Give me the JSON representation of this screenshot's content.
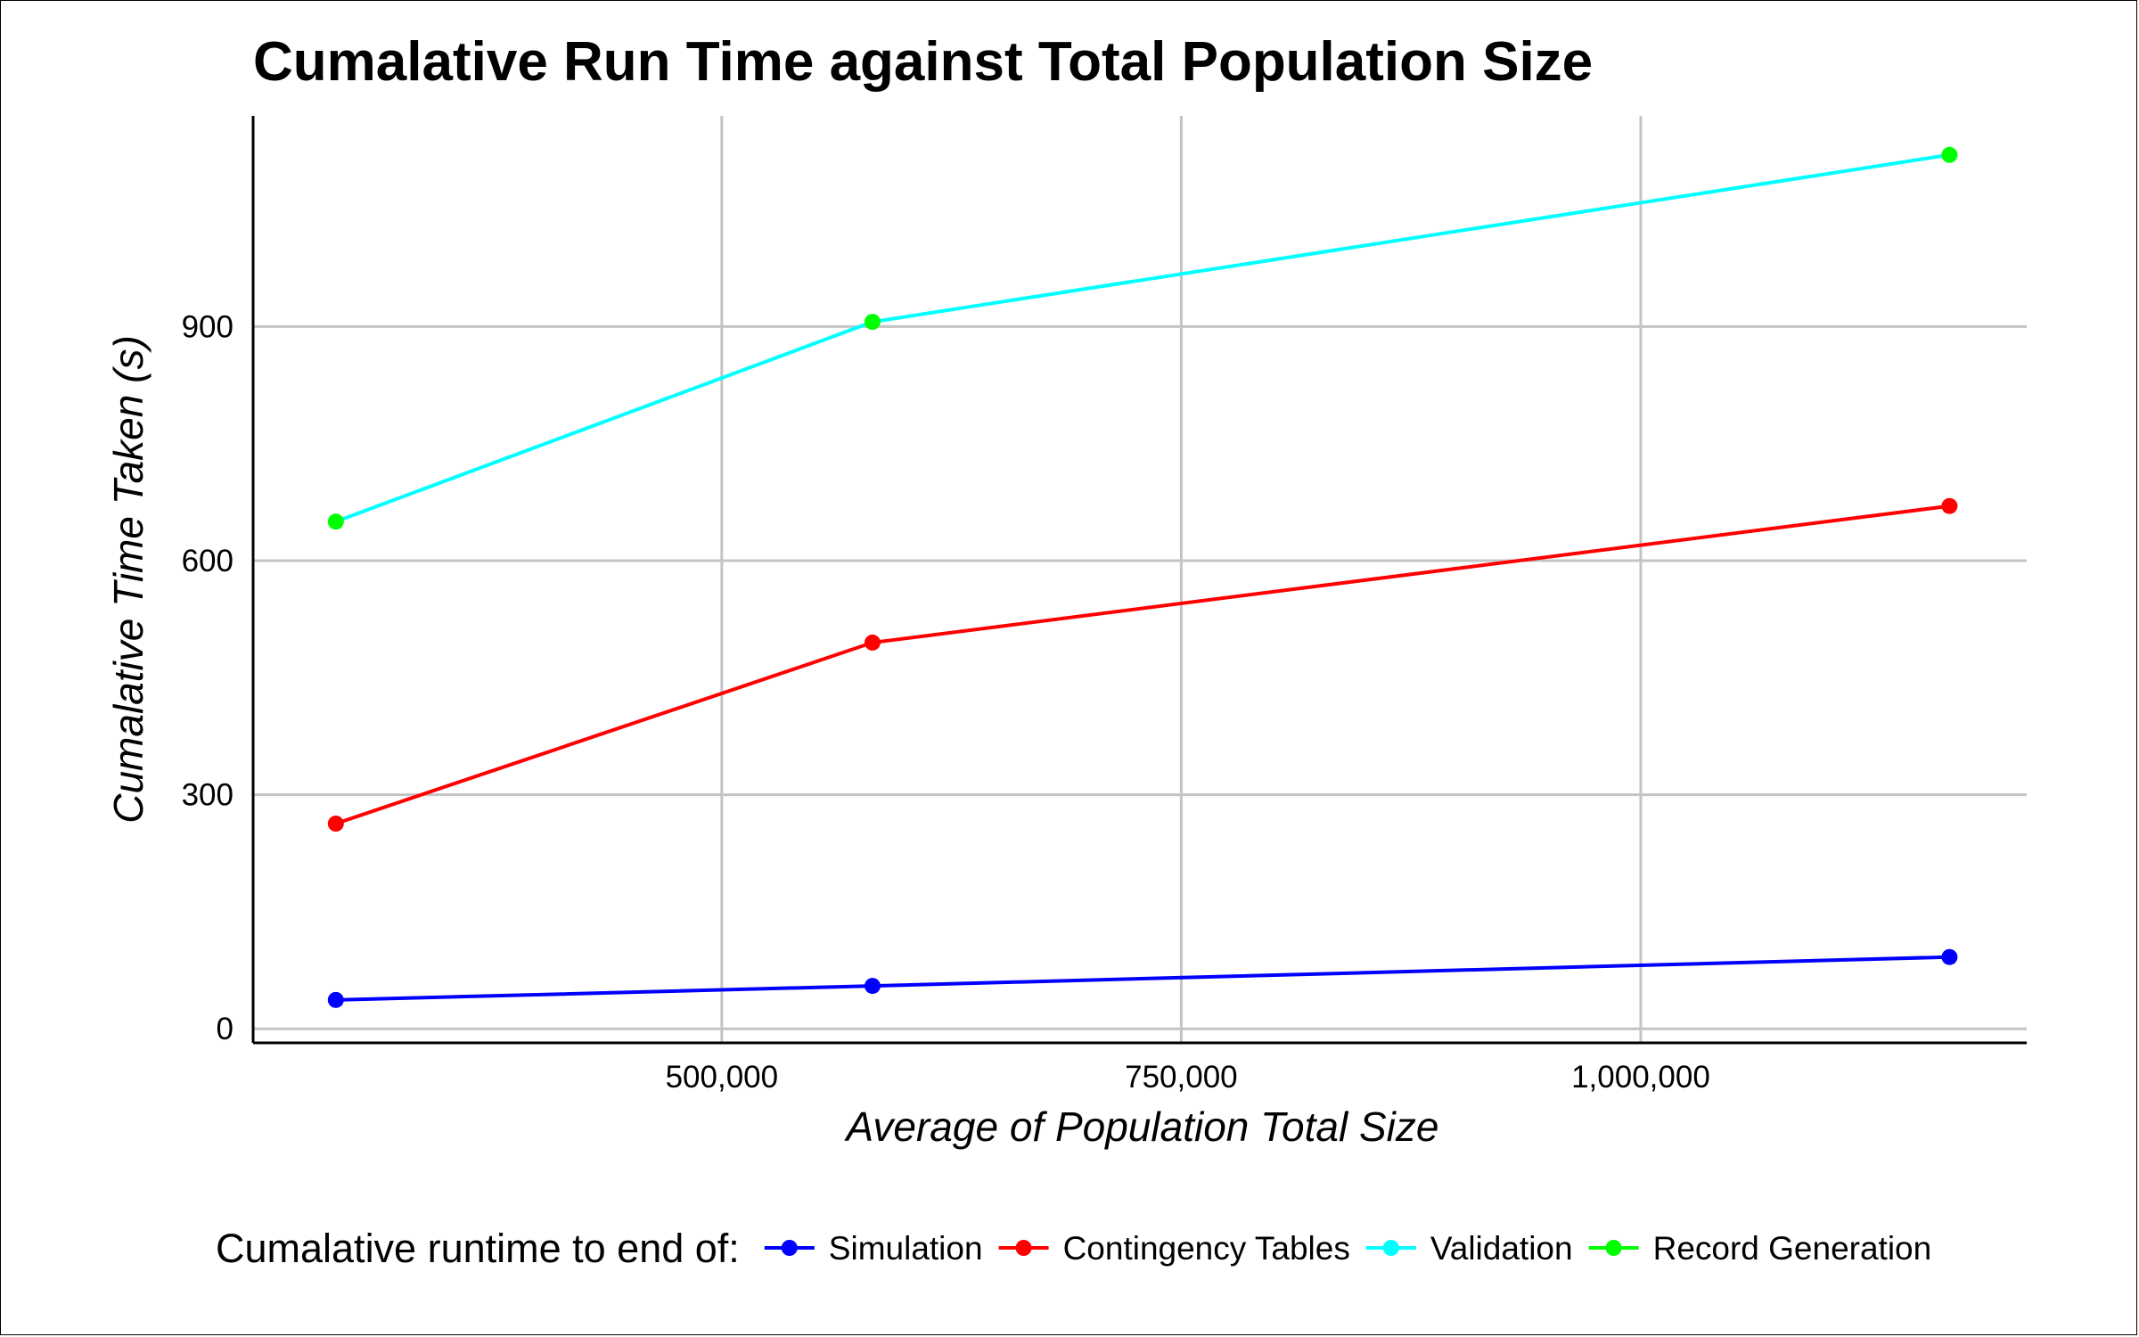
{
  "chart_data": {
    "type": "line",
    "title": "Cumalative Run Time against Total Population Size",
    "xlabel": "Average of Population Total Size",
    "ylabel": "Cumalative Time Taken (s)",
    "x": [
      290000,
      582000,
      1168000
    ],
    "xlim": [
      245000,
      1210000
    ],
    "ylim": [
      -18,
      1170
    ],
    "x_ticks": [
      500000,
      750000,
      1000000
    ],
    "x_tick_labels": [
      "500,000",
      "750,000",
      "1,000,000"
    ],
    "y_ticks": [
      0,
      300,
      600,
      900
    ],
    "y_tick_labels": [
      "0",
      "300",
      "600",
      "900"
    ],
    "grid": true,
    "legend": {
      "position": "bottom",
      "title": "Cumalative runtime to end of:",
      "entries": [
        {
          "label": "Simulation",
          "color": "#0000ff"
        },
        {
          "label": "Contingency Tables",
          "color": "#ff0000"
        },
        {
          "label": "Validation",
          "color": "#00ffff"
        },
        {
          "label": "Record Generation",
          "color": "#00ff00"
        }
      ]
    },
    "series": [
      {
        "name": "Simulation",
        "values": [
          37,
          55,
          92
        ],
        "line_color": "#0000ff",
        "point_color": "#0000ff"
      },
      {
        "name": "Contingency Tables",
        "values": [
          263,
          495,
          670
        ],
        "line_color": "#ff0000",
        "point_color": "#ff0000"
      },
      {
        "name": "Record Generation",
        "values": [
          650,
          906,
          1120
        ],
        "line_color": "#00ffff",
        "point_color": "#00ff00"
      }
    ]
  }
}
